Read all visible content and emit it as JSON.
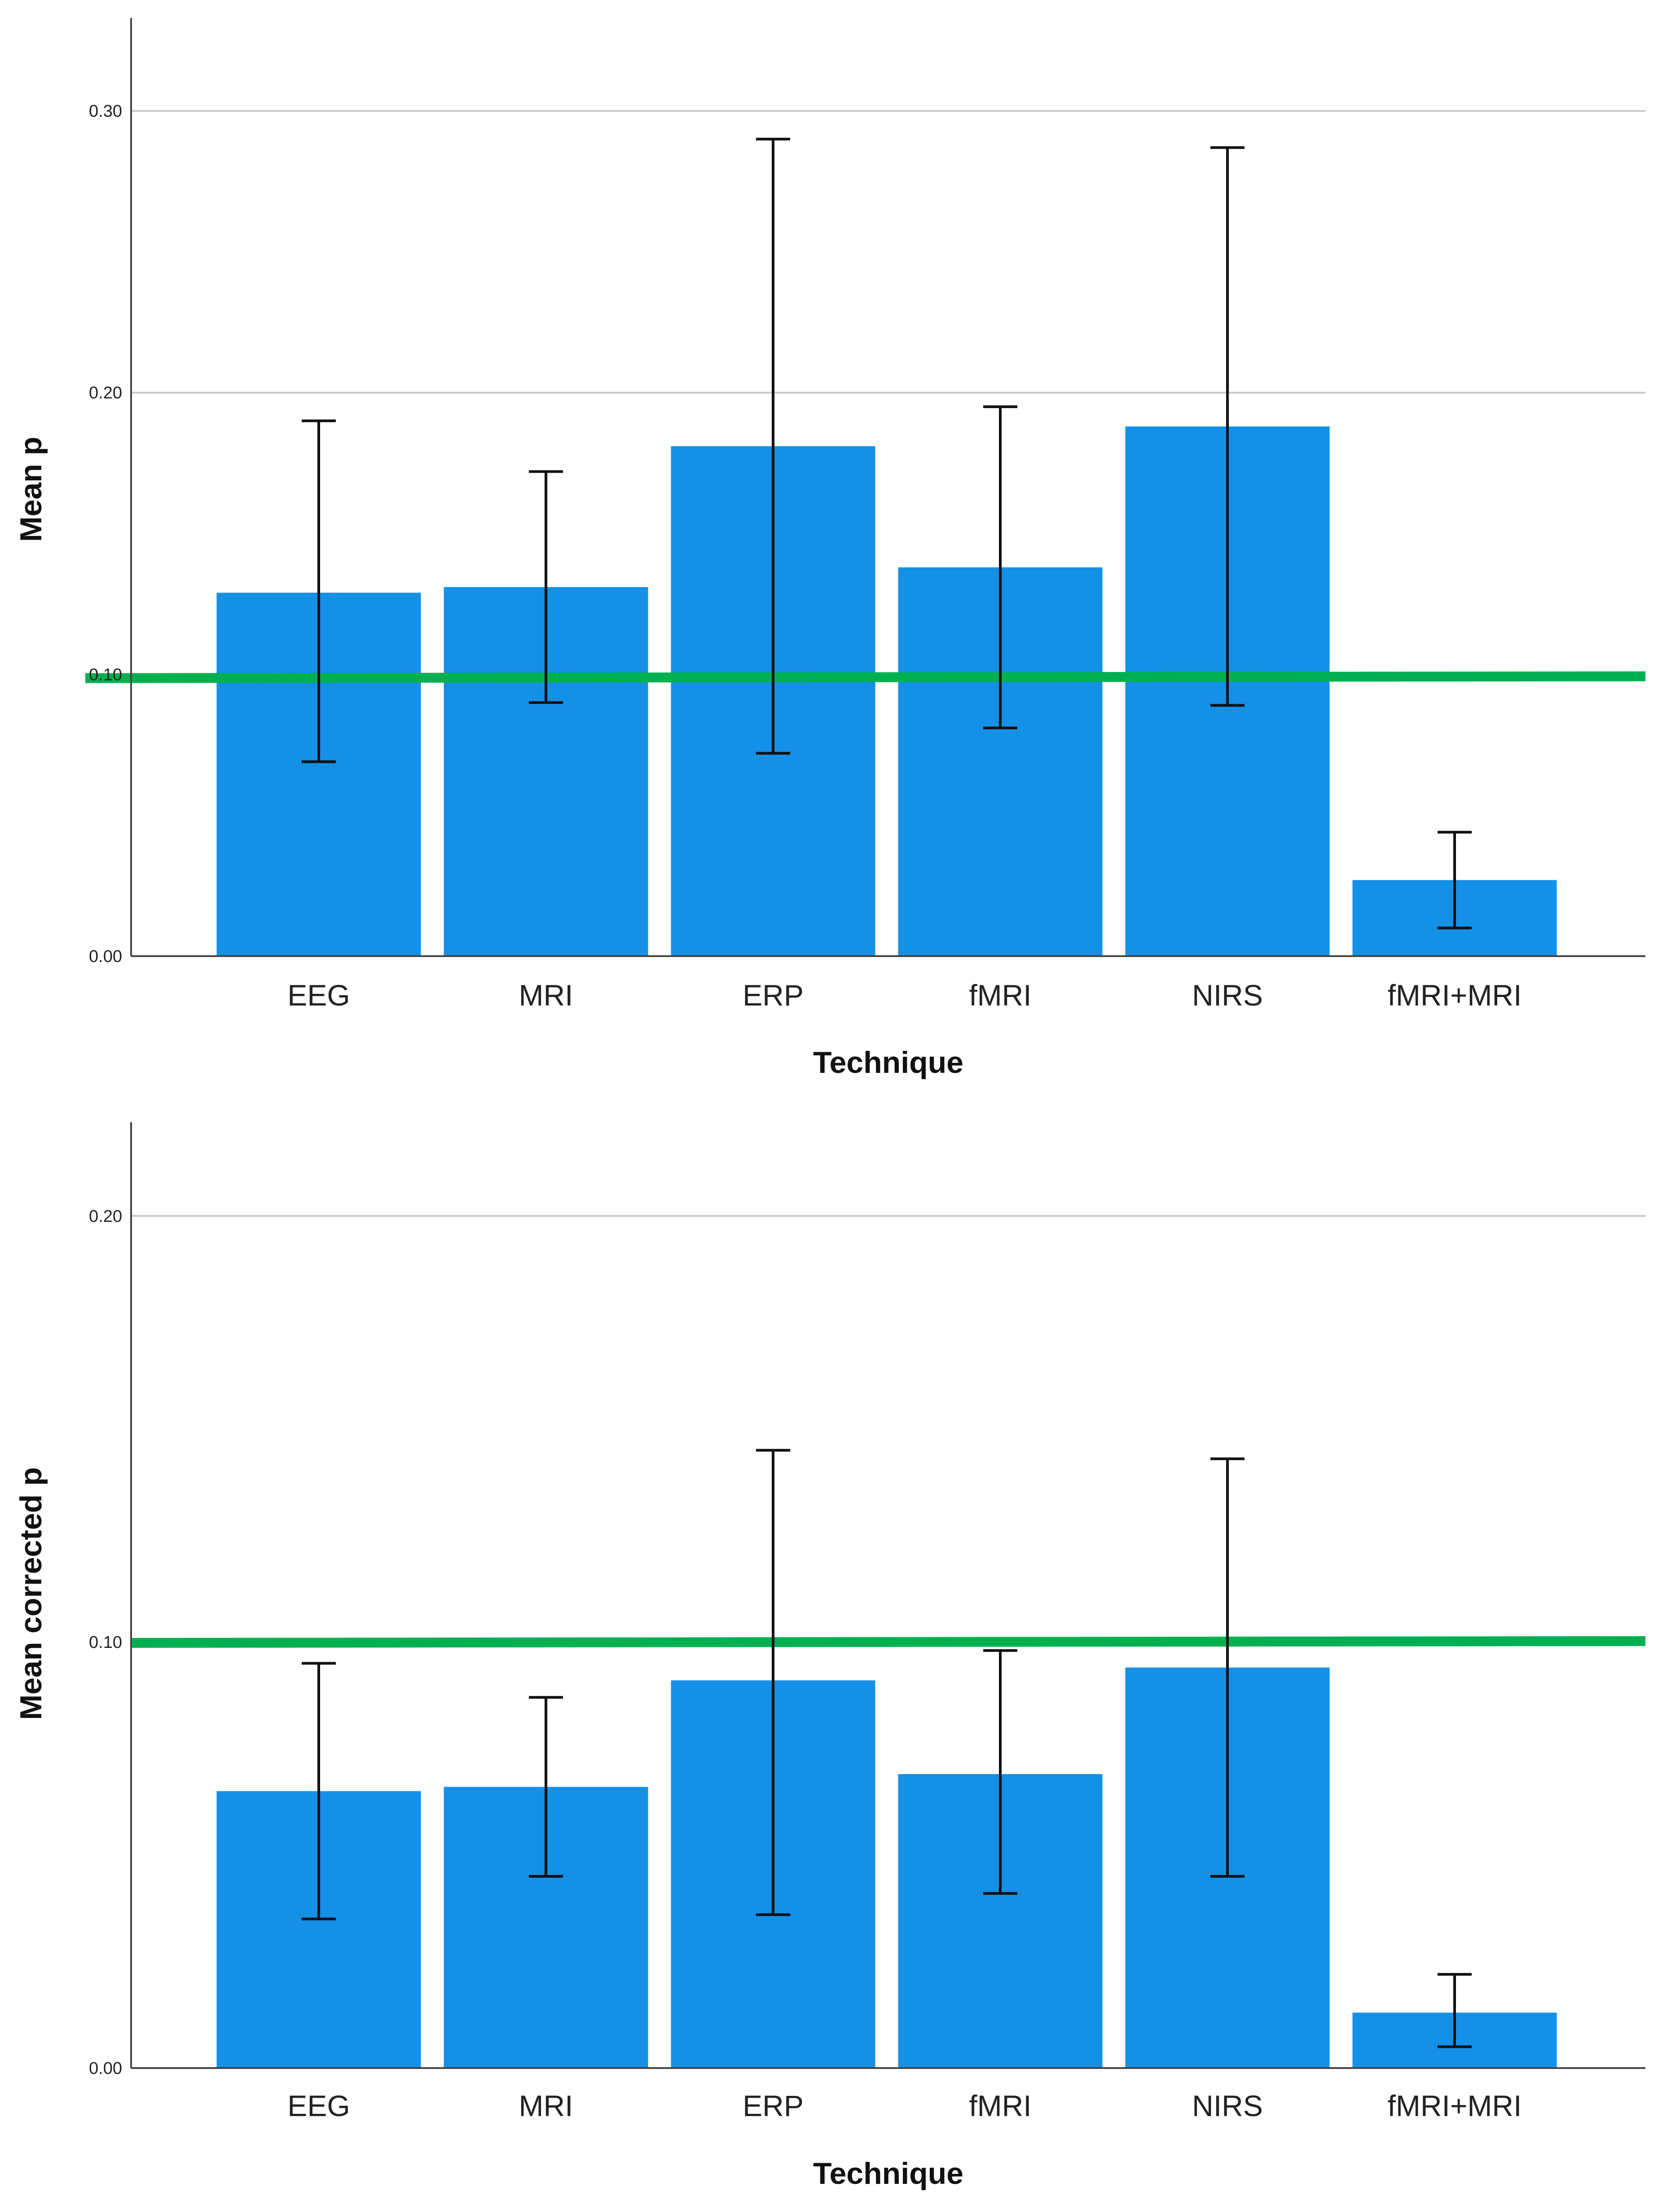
{
  "chart_data": [
    {
      "type": "bar",
      "title": "",
      "xlabel": "Technique",
      "ylabel": "Mean p",
      "categories": [
        "EEG",
        "MRI",
        "ERP",
        "fMRI",
        "NIRS",
        "fMRI+MRI"
      ],
      "values": [
        0.129,
        0.131,
        0.181,
        0.138,
        0.188,
        0.027
      ],
      "error_low": [
        0.069,
        0.09,
        0.072,
        0.081,
        0.089,
        0.01
      ],
      "error_high": [
        0.19,
        0.172,
        0.29,
        0.195,
        0.287,
        0.044
      ],
      "reference_line": 0.099,
      "yticks": [
        "0.00",
        "0.10",
        "0.20",
        "0.30"
      ],
      "ylim": [
        0,
        0.333
      ],
      "grid": true,
      "colors": {
        "bar": "#1490e6",
        "reference": "#00b050",
        "error": "#111111",
        "grid": "#c8c8c8"
      }
    },
    {
      "type": "bar",
      "title": "",
      "xlabel": "Technique",
      "ylabel": "Mean corrected p",
      "categories": [
        "EEG",
        "MRI",
        "ERP",
        "fMRI",
        "NIRS",
        "fMRI+MRI"
      ],
      "values": [
        0.065,
        0.066,
        0.091,
        0.069,
        0.094,
        0.013
      ],
      "error_low": [
        0.035,
        0.045,
        0.036,
        0.041,
        0.045,
        0.005
      ],
      "error_high": [
        0.095,
        0.087,
        0.145,
        0.098,
        0.143,
        0.022
      ],
      "reference_line": 0.1,
      "yticks": [
        "0.00",
        "0.10",
        "0.20"
      ],
      "ylim": [
        0,
        0.222
      ],
      "grid": true,
      "colors": {
        "bar": "#1490e6",
        "reference": "#00b050",
        "error": "#111111",
        "grid": "#c8c8c8"
      }
    }
  ]
}
